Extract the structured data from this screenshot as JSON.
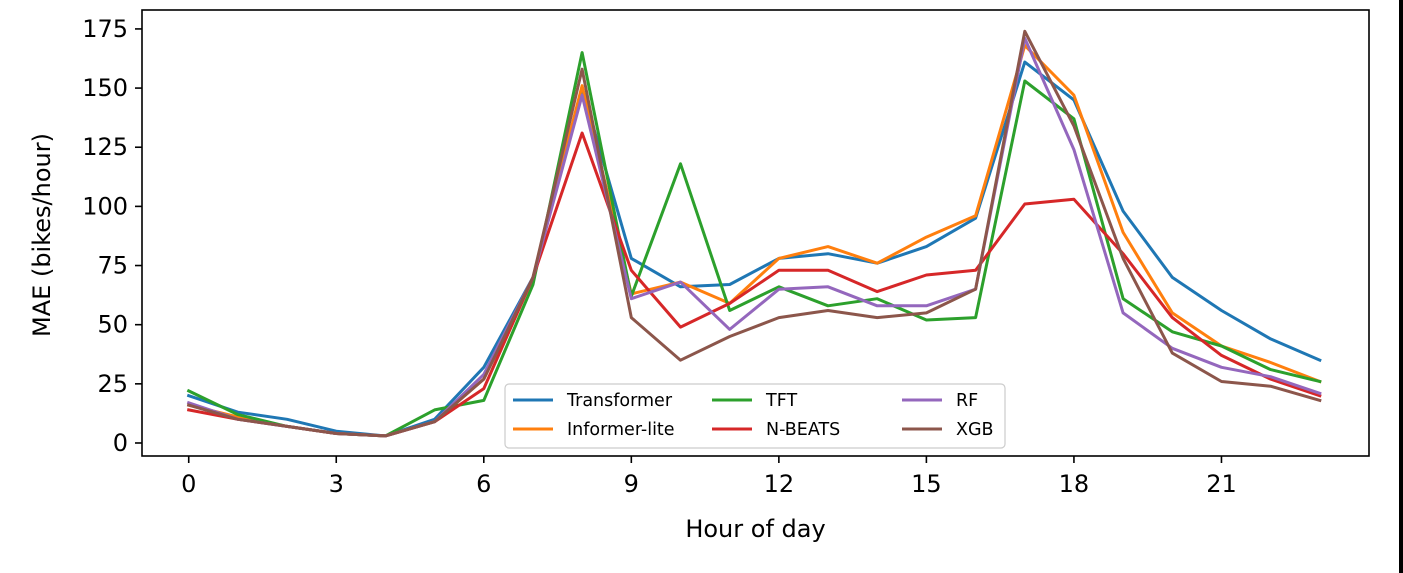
{
  "chart_data": {
    "type": "line",
    "xlabel": "Hour of day",
    "ylabel": "MAE (bikes/hour)",
    "x": [
      0,
      1,
      2,
      3,
      4,
      5,
      6,
      7,
      8,
      9,
      10,
      11,
      12,
      13,
      14,
      15,
      16,
      17,
      18,
      19,
      20,
      21,
      22,
      23
    ],
    "xlim": [
      -0.95,
      24.0
    ],
    "ylim": [
      -5.5,
      183
    ],
    "xticks": [
      0,
      3,
      6,
      9,
      12,
      15,
      18,
      21
    ],
    "yticks": [
      0,
      25,
      50,
      75,
      100,
      125,
      150,
      175
    ],
    "grid": false,
    "legend": {
      "placement": "lower center",
      "columns": 3
    },
    "series": [
      {
        "name": "Transformer",
        "color": "#1f77b4",
        "values": [
          20,
          13,
          10,
          5,
          3,
          10,
          32,
          70,
          150,
          78,
          66,
          67,
          78,
          80,
          76,
          83,
          95,
          161,
          145,
          98,
          70,
          56,
          44,
          35
        ]
      },
      {
        "name": "Informer-lite",
        "color": "#ff7f0e",
        "values": [
          16,
          11,
          7,
          4,
          3,
          9,
          27,
          70,
          151,
          63,
          68,
          59,
          78,
          83,
          76,
          87,
          96,
          168,
          147,
          89,
          55,
          41,
          34,
          26
        ]
      },
      {
        "name": "TFT",
        "color": "#2ca02c",
        "values": [
          22,
          12,
          7,
          4,
          3,
          14,
          18,
          67,
          165,
          62,
          118,
          56,
          66,
          58,
          61,
          52,
          53,
          153,
          137,
          61,
          47,
          41,
          31,
          26
        ]
      },
      {
        "name": "N-BEATS",
        "color": "#d62728",
        "values": [
          14,
          10,
          7,
          4,
          3,
          9,
          23,
          70,
          131,
          73,
          49,
          59,
          73,
          73,
          64,
          71,
          73,
          101,
          103,
          80,
          53,
          37,
          27,
          20
        ]
      },
      {
        "name": "RF",
        "color": "#9467bd",
        "values": [
          17,
          10,
          7,
          4,
          3,
          9,
          29,
          70,
          147,
          61,
          68,
          48,
          65,
          66,
          58,
          58,
          65,
          171,
          124,
          55,
          40,
          32,
          28,
          21
        ]
      },
      {
        "name": "XGB",
        "color": "#8c564b",
        "values": [
          16,
          10,
          7,
          4,
          3,
          9,
          27,
          70,
          158,
          53,
          35,
          45,
          53,
          56,
          53,
          55,
          65,
          174,
          134,
          78,
          38,
          26,
          24,
          18
        ]
      }
    ]
  }
}
